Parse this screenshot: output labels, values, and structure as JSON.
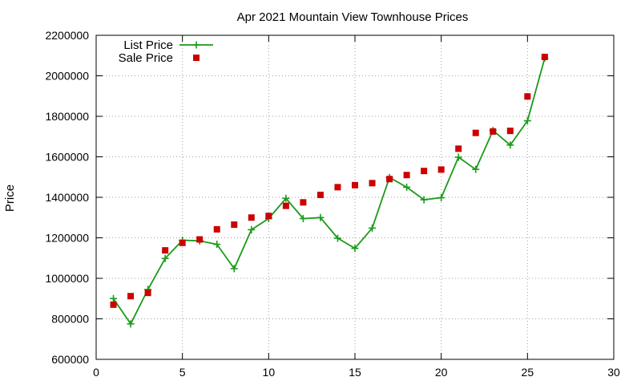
{
  "chart_data": {
    "type": "line",
    "title": "Apr 2021 Mountain View Townhouse Prices",
    "xlabel": "",
    "ylabel": "Price",
    "xlim": [
      0,
      30
    ],
    "ylim": [
      600000,
      2200000
    ],
    "xticks": [
      0,
      5,
      10,
      15,
      20,
      25,
      30
    ],
    "yticks": [
      600000,
      800000,
      1000000,
      1200000,
      1400000,
      1600000,
      1800000,
      2000000,
      2200000
    ],
    "grid": true,
    "legend_position": "top-left",
    "series": [
      {
        "name": "List Price",
        "style": "line-plus",
        "color": "#1a9a1a",
        "x": [
          1,
          2,
          3,
          4,
          5,
          6,
          7,
          8,
          9,
          10,
          11,
          12,
          13,
          14,
          15,
          16,
          17,
          18,
          19,
          20,
          21,
          22,
          23,
          24,
          25,
          26
        ],
        "values": [
          900000,
          775000,
          945000,
          1098000,
          1188000,
          1185000,
          1168000,
          1048000,
          1240000,
          1295000,
          1395000,
          1295000,
          1300000,
          1198000,
          1148000,
          1248000,
          1498000,
          1450000,
          1388000,
          1398000,
          1598000,
          1538000,
          1730000,
          1658000,
          1778000,
          2088000
        ]
      },
      {
        "name": "Sale Price",
        "style": "square-points",
        "color": "#cc0000",
        "x": [
          1,
          2,
          3,
          4,
          5,
          6,
          7,
          8,
          9,
          10,
          11,
          12,
          13,
          14,
          15,
          16,
          17,
          18,
          19,
          20,
          21,
          22,
          23,
          24,
          25,
          26
        ],
        "values": [
          870000,
          912000,
          928000,
          1138000,
          1175000,
          1192000,
          1242000,
          1265000,
          1300000,
          1308000,
          1358000,
          1375000,
          1412000,
          1450000,
          1460000,
          1470000,
          1490000,
          1510000,
          1530000,
          1537000,
          1640000,
          1718000,
          1725000,
          1728000,
          1898000,
          2093000
        ]
      }
    ]
  }
}
